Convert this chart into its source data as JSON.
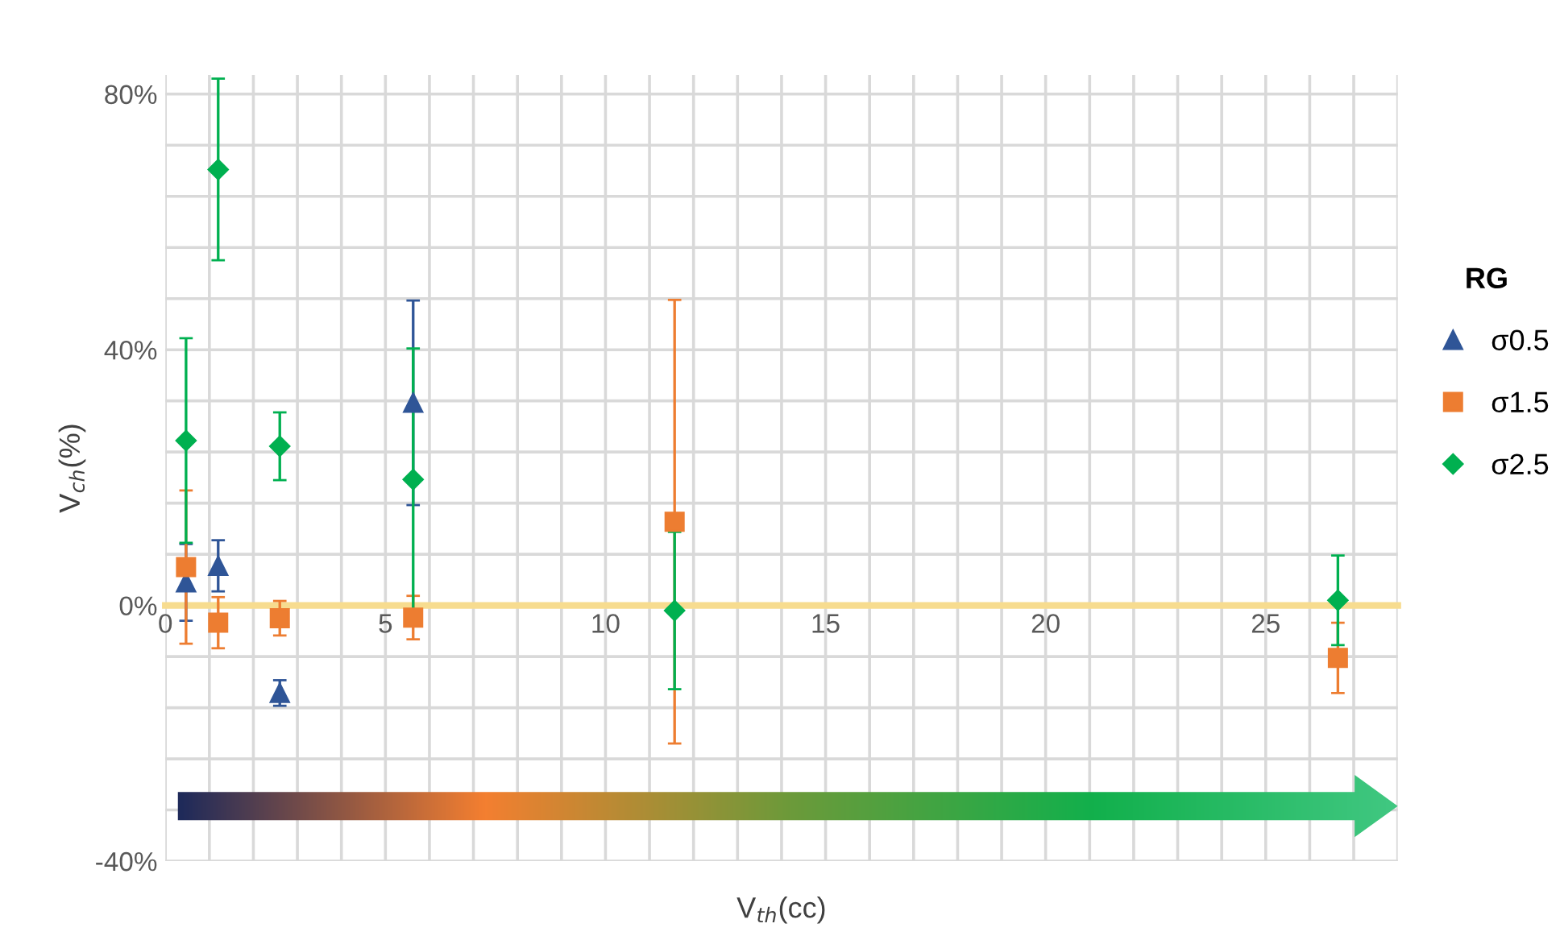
{
  "chart_data": {
    "type": "scatter",
    "xlabel": "V$_{th}$(cc)",
    "ylabel": "V$_{ch}$(%)",
    "legend_title": "RG",
    "legend": "right",
    "grid": true,
    "xlim": [
      0,
      28
    ],
    "ylim": [
      -40,
      83
    ],
    "xticks": [
      0,
      {
        "value": 1,
        "label": null
      },
      {
        "value": 2,
        "label": null
      },
      {
        "value": 3,
        "label": null
      },
      {
        "value": 4,
        "label": null
      },
      5,
      {
        "value": 6,
        "label": null
      },
      {
        "value": 7,
        "label": null
      },
      {
        "value": 8,
        "label": null
      },
      {
        "value": 9,
        "label": null
      },
      10,
      {
        "value": 11,
        "label": null
      },
      {
        "value": 12,
        "label": null
      },
      {
        "value": 13,
        "label": null
      },
      {
        "value": 14,
        "label": null
      },
      15,
      {
        "value": 16,
        "label": null
      },
      {
        "value": 17,
        "label": null
      },
      {
        "value": 18,
        "label": null
      },
      {
        "value": 19,
        "label": null
      },
      20,
      {
        "value": 21,
        "label": null
      },
      {
        "value": 22,
        "label": null
      },
      {
        "value": 23,
        "label": null
      },
      {
        "value": 24,
        "label": null
      },
      25,
      {
        "value": 26,
        "label": null
      },
      {
        "value": 27,
        "label": null
      },
      {
        "value": 28,
        "label": null
      }
    ],
    "yticks": [
      {
        "value": -40,
        "label": "-40%"
      },
      {
        "value": -32,
        "label": null
      },
      {
        "value": -24,
        "label": null
      },
      {
        "value": -16,
        "label": null
      },
      {
        "value": -8,
        "label": null
      },
      {
        "value": 0,
        "label": "0%"
      },
      {
        "value": 8,
        "label": null
      },
      {
        "value": 16,
        "label": null
      },
      {
        "value": 24,
        "label": null
      },
      {
        "value": 32,
        "label": null
      },
      {
        "value": 40,
        "label": "40%"
      },
      {
        "value": 48,
        "label": null
      },
      {
        "value": 56,
        "label": null
      },
      {
        "value": 64,
        "label": null
      },
      {
        "value": 72,
        "label": null
      },
      {
        "value": 80,
        "label": "80%"
      }
    ],
    "series": [
      {
        "name": "σ0.5",
        "color": "#2f5597",
        "marker": "triangle",
        "x": [
          0.47,
          1.2,
          2.6,
          5.63
        ],
        "values": [
          3.6,
          6.2,
          -13.7,
          31.7
        ],
        "errors": [
          6,
          4,
          2,
          16
        ]
      },
      {
        "name": "σ1.5",
        "color": "#ed7d31",
        "marker": "square",
        "x": [
          0.47,
          1.2,
          2.6,
          5.63,
          11.57,
          26.64
        ],
        "values": [
          6,
          -2.7,
          -2,
          -1.9,
          13.1,
          -8.2
        ],
        "errors": [
          12,
          4,
          2.7,
          3.4,
          34.7,
          5.5
        ]
      },
      {
        "name": "σ2.5",
        "color": "#00b050",
        "marker": "diamond",
        "x": [
          0.47,
          1.2,
          2.6,
          5.63,
          11.57,
          26.64
        ],
        "values": [
          25.8,
          68.2,
          24.9,
          19.7,
          -0.8,
          0.8
        ],
        "errors": [
          16,
          14.2,
          5.3,
          20.5,
          12.3,
          7
        ]
      }
    ]
  }
}
